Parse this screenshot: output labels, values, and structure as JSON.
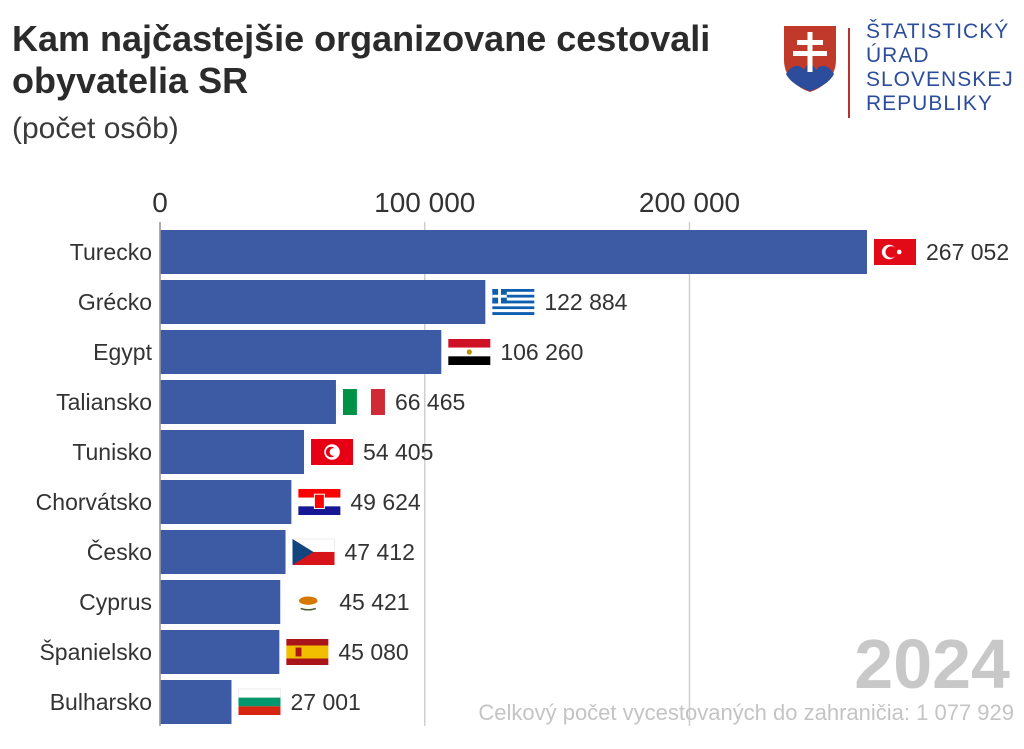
{
  "header": {
    "title": "Kam najčastejšie organizovane cestovali obyvatelia SR",
    "subtitle": "(počet osôb)"
  },
  "logo": {
    "lines": [
      "ŠTATISTICKÝ",
      "ÚRAD",
      "SLOVENSKEJ",
      "REPUBLIKY"
    ],
    "emblem": "slovak-coat-of-arms"
  },
  "year": "2024",
  "footnote": "Celkový počet vycestovaných do zahraničia: 1 077 929",
  "chart_data": {
    "type": "bar",
    "orientation": "horizontal",
    "categories": [
      "Turecko",
      "Grécko",
      "Egypt",
      "Taliansko",
      "Tunisko",
      "Chorvátsko",
      "Česko",
      "Cyprus",
      "Španielsko",
      "Bulharsko"
    ],
    "values": [
      267052,
      122884,
      106260,
      66465,
      54405,
      49624,
      47412,
      45421,
      45080,
      27001
    ],
    "value_labels": [
      "267 052",
      "122 884",
      "106 260",
      "66 465",
      "54 405",
      "49 624",
      "47 412",
      "45 421",
      "45 080",
      "27 001"
    ],
    "flags": [
      "turkey-flag",
      "greece-flag",
      "egypt-flag",
      "italy-flag",
      "tunisia-flag",
      "croatia-flag",
      "czechia-flag",
      "cyprus-flag",
      "spain-flag",
      "bulgaria-flag"
    ],
    "ticks": [
      0,
      100000,
      200000
    ],
    "tick_labels": [
      "0",
      "100 000",
      "200 000"
    ],
    "xlim": [
      0,
      267052
    ],
    "axis_position": "top",
    "grid": true,
    "bar_color": "#3d5ba5"
  }
}
